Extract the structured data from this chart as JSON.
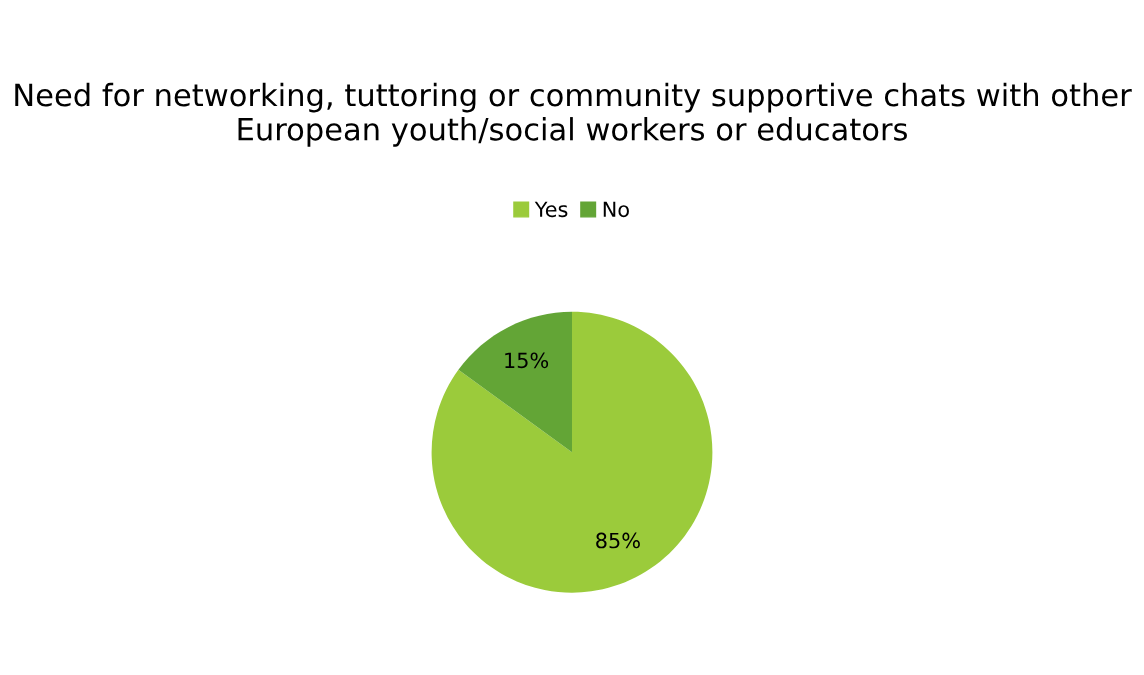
{
  "chart_data": {
    "type": "pie",
    "title": "Need for networking, tuttoring or community supportive chats with other European youth/social workers or educators",
    "categories": [
      "Yes",
      "No"
    ],
    "values": [
      85,
      15
    ],
    "colors": [
      "#9bcb3b",
      "#63a536"
    ],
    "value_labels": [
      "85%",
      "15%"
    ],
    "legend": "top"
  }
}
